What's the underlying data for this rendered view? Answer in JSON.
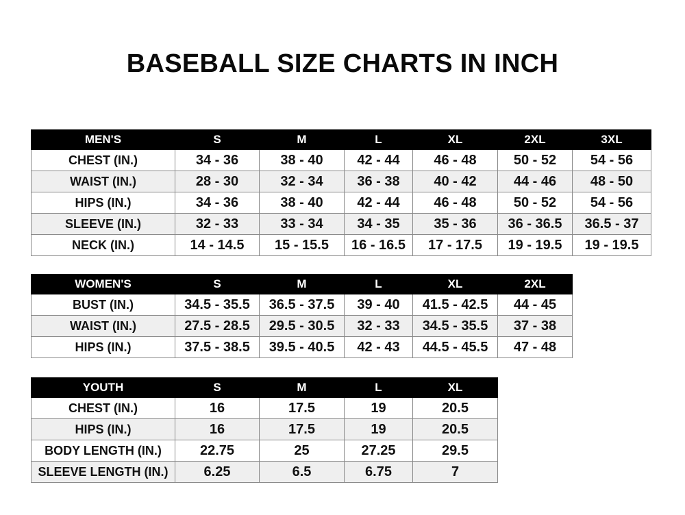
{
  "title": "BASEBALL SIZE CHARTS IN INCH",
  "tables": [
    {
      "id": "men",
      "header": [
        "MEN'S",
        "S",
        "M",
        "L",
        "XL",
        "2XL",
        "3XL"
      ],
      "rows": [
        [
          "CHEST (IN.)",
          "34 - 36",
          "38 - 40",
          "42 - 44",
          "46 - 48",
          "50 - 52",
          "54 - 56"
        ],
        [
          "WAIST (IN.)",
          "28 - 30",
          "32 - 34",
          "36 - 38",
          "40 - 42",
          "44 - 46",
          "48 - 50"
        ],
        [
          "HIPS (IN.)",
          "34 - 36",
          "38 - 40",
          "42 - 44",
          "46 - 48",
          "50 - 52",
          "54 - 56"
        ],
        [
          "SLEEVE (IN.)",
          "32 - 33",
          "33 - 34",
          "34 - 35",
          "35 - 36",
          "36 - 36.5",
          "36.5 - 37"
        ],
        [
          "NECK (IN.)",
          "14 - 14.5",
          "15 - 15.5",
          "16 - 16.5",
          "17 - 17.5",
          "19 - 19.5",
          "19 - 19.5"
        ]
      ]
    },
    {
      "id": "women",
      "header": [
        "WOMEN'S",
        "S",
        "M",
        "L",
        "XL",
        "2XL"
      ],
      "rows": [
        [
          "BUST (IN.)",
          "34.5 - 35.5",
          "36.5 - 37.5",
          "39 - 40",
          "41.5 - 42.5",
          "44 - 45"
        ],
        [
          "WAIST (IN.)",
          "27.5 - 28.5",
          "29.5 - 30.5",
          "32 - 33",
          "34.5 - 35.5",
          "37 - 38"
        ],
        [
          "HIPS (IN.)",
          "37.5 - 38.5",
          "39.5 - 40.5",
          "42 - 43",
          "44.5 - 45.5",
          "47 - 48"
        ]
      ]
    },
    {
      "id": "youth",
      "header": [
        "YOUTH",
        "S",
        "M",
        "L",
        "XL"
      ],
      "rows": [
        [
          "CHEST (IN.)",
          "16",
          "17.5",
          "19",
          "20.5"
        ],
        [
          "HIPS (IN.)",
          "16",
          "17.5",
          "19",
          "20.5"
        ],
        [
          "BODY LENGTH (IN.)",
          "22.75",
          "25",
          "27.25",
          "29.5"
        ],
        [
          "SLEEVE LENGTH (IN.)",
          "6.25",
          "6.5",
          "6.75",
          "7"
        ]
      ]
    }
  ]
}
